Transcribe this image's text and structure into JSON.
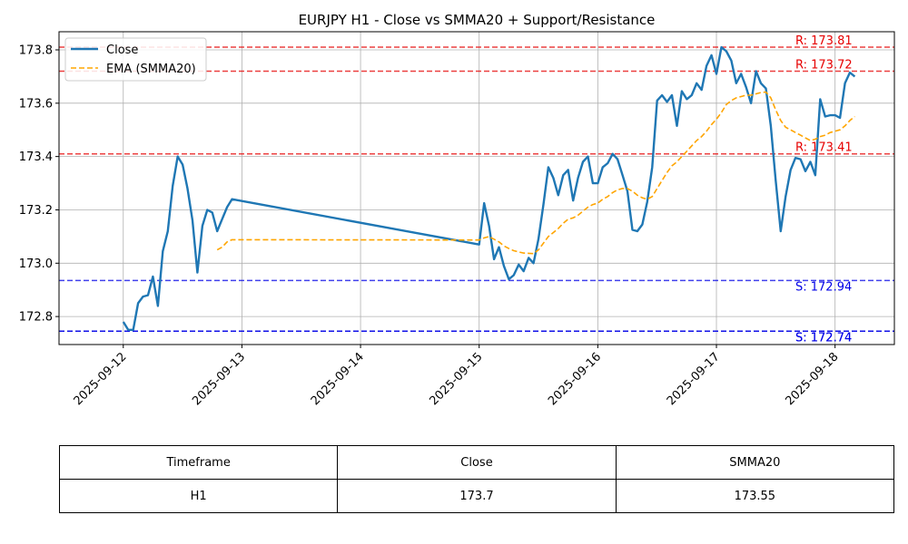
{
  "chart_data": {
    "type": "line",
    "title": "EURJPY H1 - Close vs SMMA20 + Support/Resistance",
    "xlabel": "",
    "ylabel": "",
    "x_ticks": [
      "2025-09-12",
      "2025-09-13",
      "2025-09-14",
      "2025-09-15",
      "2025-09-16",
      "2025-09-17",
      "2025-09-18"
    ],
    "y_ticks": [
      172.8,
      173.0,
      173.2,
      173.4,
      173.6,
      173.8
    ],
    "y_tick_labels": [
      "172.8",
      "173.0",
      "173.2",
      "173.4",
      "173.6",
      "173.8"
    ],
    "xlim": [
      "2025-09-11T11:00",
      "2025-09-18T12:00"
    ],
    "ylim": [
      172.695,
      173.868
    ],
    "grid": true,
    "legend_position": "top-left",
    "series": [
      {
        "name": "Close",
        "color": "#1f77b4",
        "style": "solid",
        "points": [
          [
            "2025-09-12T00:00",
            172.78
          ],
          [
            "2025-09-12T01:00",
            172.75
          ],
          [
            "2025-09-12T02:00",
            172.75
          ],
          [
            "2025-09-12T03:00",
            172.85
          ],
          [
            "2025-09-12T04:00",
            172.875
          ],
          [
            "2025-09-12T05:00",
            172.88
          ],
          [
            "2025-09-12T06:00",
            172.95
          ],
          [
            "2025-09-12T07:00",
            172.84
          ],
          [
            "2025-09-12T08:00",
            173.045
          ],
          [
            "2025-09-12T09:00",
            173.12
          ],
          [
            "2025-09-12T10:00",
            173.29
          ],
          [
            "2025-09-12T11:00",
            173.4
          ],
          [
            "2025-09-12T12:00",
            173.37
          ],
          [
            "2025-09-12T13:00",
            173.28
          ],
          [
            "2025-09-12T14:00",
            173.16
          ],
          [
            "2025-09-12T15:00",
            172.965
          ],
          [
            "2025-09-12T16:00",
            173.14
          ],
          [
            "2025-09-12T17:00",
            173.2
          ],
          [
            "2025-09-12T18:00",
            173.19
          ],
          [
            "2025-09-12T19:00",
            173.12
          ],
          [
            "2025-09-12T20:00",
            173.165
          ],
          [
            "2025-09-12T21:00",
            173.21
          ],
          [
            "2025-09-12T22:00",
            173.24
          ],
          [
            "2025-09-15T00:00",
            173.07
          ],
          [
            "2025-09-15T01:00",
            173.225
          ],
          [
            "2025-09-15T02:00",
            173.14
          ],
          [
            "2025-09-15T03:00",
            173.015
          ],
          [
            "2025-09-15T04:00",
            173.06
          ],
          [
            "2025-09-15T05:00",
            172.99
          ],
          [
            "2025-09-15T06:00",
            172.94
          ],
          [
            "2025-09-15T07:00",
            172.955
          ],
          [
            "2025-09-15T08:00",
            172.995
          ],
          [
            "2025-09-15T09:00",
            172.97
          ],
          [
            "2025-09-15T10:00",
            173.02
          ],
          [
            "2025-09-15T11:00",
            173.0
          ],
          [
            "2025-09-15T12:00",
            173.09
          ],
          [
            "2025-09-15T13:00",
            173.22
          ],
          [
            "2025-09-15T14:00",
            173.36
          ],
          [
            "2025-09-15T15:00",
            173.32
          ],
          [
            "2025-09-15T16:00",
            173.255
          ],
          [
            "2025-09-15T17:00",
            173.33
          ],
          [
            "2025-09-15T18:00",
            173.35
          ],
          [
            "2025-09-15T19:00",
            173.235
          ],
          [
            "2025-09-15T20:00",
            173.32
          ],
          [
            "2025-09-15T21:00",
            173.38
          ],
          [
            "2025-09-15T22:00",
            173.4
          ],
          [
            "2025-09-15T23:00",
            173.3
          ],
          [
            "2025-09-16T00:00",
            173.3
          ],
          [
            "2025-09-16T01:00",
            173.36
          ],
          [
            "2025-09-16T02:00",
            173.375
          ],
          [
            "2025-09-16T03:00",
            173.41
          ],
          [
            "2025-09-16T04:00",
            173.39
          ],
          [
            "2025-09-16T05:00",
            173.33
          ],
          [
            "2025-09-16T06:00",
            173.27
          ],
          [
            "2025-09-16T07:00",
            173.125
          ],
          [
            "2025-09-16T08:00",
            173.12
          ],
          [
            "2025-09-16T09:00",
            173.145
          ],
          [
            "2025-09-16T10:00",
            173.23
          ],
          [
            "2025-09-16T11:00",
            173.36
          ],
          [
            "2025-09-16T12:00",
            173.61
          ],
          [
            "2025-09-16T13:00",
            173.63
          ],
          [
            "2025-09-16T14:00",
            173.605
          ],
          [
            "2025-09-16T15:00",
            173.63
          ],
          [
            "2025-09-16T16:00",
            173.515
          ],
          [
            "2025-09-16T17:00",
            173.645
          ],
          [
            "2025-09-16T18:00",
            173.615
          ],
          [
            "2025-09-16T19:00",
            173.63
          ],
          [
            "2025-09-16T20:00",
            173.675
          ],
          [
            "2025-09-16T21:00",
            173.65
          ],
          [
            "2025-09-16T22:00",
            173.74
          ],
          [
            "2025-09-16T23:00",
            173.78
          ],
          [
            "2025-09-17T00:00",
            173.71
          ],
          [
            "2025-09-17T01:00",
            173.81
          ],
          [
            "2025-09-17T02:00",
            173.795
          ],
          [
            "2025-09-17T03:00",
            173.76
          ],
          [
            "2025-09-17T04:00",
            173.675
          ],
          [
            "2025-09-17T05:00",
            173.71
          ],
          [
            "2025-09-17T06:00",
            173.66
          ],
          [
            "2025-09-17T07:00",
            173.6
          ],
          [
            "2025-09-17T08:00",
            173.72
          ],
          [
            "2025-09-17T09:00",
            173.675
          ],
          [
            "2025-09-17T10:00",
            173.655
          ],
          [
            "2025-09-17T11:00",
            173.515
          ],
          [
            "2025-09-17T12:00",
            173.31
          ],
          [
            "2025-09-17T13:00",
            173.12
          ],
          [
            "2025-09-17T14:00",
            173.25
          ],
          [
            "2025-09-17T15:00",
            173.35
          ],
          [
            "2025-09-17T16:00",
            173.395
          ],
          [
            "2025-09-17T17:00",
            173.39
          ],
          [
            "2025-09-17T18:00",
            173.345
          ],
          [
            "2025-09-17T19:00",
            173.38
          ],
          [
            "2025-09-17T20:00",
            173.33
          ],
          [
            "2025-09-17T21:00",
            173.615
          ],
          [
            "2025-09-17T22:00",
            173.55
          ],
          [
            "2025-09-17T23:00",
            173.555
          ],
          [
            "2025-09-18T00:00",
            173.555
          ],
          [
            "2025-09-18T01:00",
            173.545
          ],
          [
            "2025-09-18T02:00",
            173.675
          ],
          [
            "2025-09-18T03:00",
            173.715
          ],
          [
            "2025-09-18T04:00",
            173.7
          ]
        ]
      },
      {
        "name": "EMA (SMMA20)",
        "color": "#ffa500",
        "style": "dashed",
        "points": [
          [
            "2025-09-12T19:00",
            173.05
          ],
          [
            "2025-09-12T20:00",
            173.06
          ],
          [
            "2025-09-12T21:00",
            173.08
          ],
          [
            "2025-09-12T22:00",
            173.088
          ],
          [
            "2025-09-15T00:00",
            173.087
          ],
          [
            "2025-09-15T01:00",
            173.095
          ],
          [
            "2025-09-15T02:00",
            173.1
          ],
          [
            "2025-09-15T03:00",
            173.09
          ],
          [
            "2025-09-15T04:00",
            173.08
          ],
          [
            "2025-09-15T05:00",
            173.065
          ],
          [
            "2025-09-15T06:00",
            173.055
          ],
          [
            "2025-09-15T07:00",
            173.047
          ],
          [
            "2025-09-15T08:00",
            173.042
          ],
          [
            "2025-09-15T09:00",
            173.038
          ],
          [
            "2025-09-15T10:00",
            173.037
          ],
          [
            "2025-09-15T11:00",
            173.036
          ],
          [
            "2025-09-15T12:00",
            173.05
          ],
          [
            "2025-09-15T13:00",
            173.075
          ],
          [
            "2025-09-15T14:00",
            173.1
          ],
          [
            "2025-09-15T15:00",
            173.115
          ],
          [
            "2025-09-15T16:00",
            173.13
          ],
          [
            "2025-09-15T17:00",
            173.15
          ],
          [
            "2025-09-15T18:00",
            173.165
          ],
          [
            "2025-09-15T19:00",
            173.17
          ],
          [
            "2025-09-15T20:00",
            173.18
          ],
          [
            "2025-09-15T21:00",
            173.195
          ],
          [
            "2025-09-15T22:00",
            173.21
          ],
          [
            "2025-09-15T23:00",
            173.22
          ],
          [
            "2025-09-16T00:00",
            173.225
          ],
          [
            "2025-09-16T01:00",
            173.24
          ],
          [
            "2025-09-16T02:00",
            173.25
          ],
          [
            "2025-09-16T03:00",
            173.265
          ],
          [
            "2025-09-16T04:00",
            173.275
          ],
          [
            "2025-09-16T05:00",
            173.28
          ],
          [
            "2025-09-16T06:00",
            173.28
          ],
          [
            "2025-09-16T07:00",
            173.27
          ],
          [
            "2025-09-16T08:00",
            173.255
          ],
          [
            "2025-09-16T09:00",
            173.245
          ],
          [
            "2025-09-16T10:00",
            173.24
          ],
          [
            "2025-09-16T11:00",
            173.25
          ],
          [
            "2025-09-16T12:00",
            173.28
          ],
          [
            "2025-09-16T13:00",
            173.31
          ],
          [
            "2025-09-16T14:00",
            173.34
          ],
          [
            "2025-09-16T15:00",
            173.365
          ],
          [
            "2025-09-16T16:00",
            173.38
          ],
          [
            "2025-09-16T17:00",
            173.4
          ],
          [
            "2025-09-16T18:00",
            173.42
          ],
          [
            "2025-09-16T19:00",
            173.44
          ],
          [
            "2025-09-16T20:00",
            173.46
          ],
          [
            "2025-09-16T21:00",
            173.475
          ],
          [
            "2025-09-16T22:00",
            173.495
          ],
          [
            "2025-09-16T23:00",
            173.52
          ],
          [
            "2025-09-17T00:00",
            173.54
          ],
          [
            "2025-09-17T01:00",
            173.565
          ],
          [
            "2025-09-17T02:00",
            173.595
          ],
          [
            "2025-09-17T03:00",
            173.61
          ],
          [
            "2025-09-17T04:00",
            173.62
          ],
          [
            "2025-09-17T05:00",
            173.625
          ],
          [
            "2025-09-17T06:00",
            173.63
          ],
          [
            "2025-09-17T07:00",
            173.63
          ],
          [
            "2025-09-17T08:00",
            173.635
          ],
          [
            "2025-09-17T09:00",
            173.64
          ],
          [
            "2025-09-17T10:00",
            173.642
          ],
          [
            "2025-09-17T11:00",
            173.62
          ],
          [
            "2025-09-17T12:00",
            173.575
          ],
          [
            "2025-09-17T13:00",
            173.535
          ],
          [
            "2025-09-17T14:00",
            173.51
          ],
          [
            "2025-09-17T15:00",
            173.5
          ],
          [
            "2025-09-17T16:00",
            173.49
          ],
          [
            "2025-09-17T17:00",
            173.48
          ],
          [
            "2025-09-17T18:00",
            173.47
          ],
          [
            "2025-09-17T19:00",
            173.46
          ],
          [
            "2025-09-17T20:00",
            173.465
          ],
          [
            "2025-09-17T21:00",
            173.475
          ],
          [
            "2025-09-17T22:00",
            173.48
          ],
          [
            "2025-09-17T23:00",
            173.49
          ],
          [
            "2025-09-18T00:00",
            173.495
          ],
          [
            "2025-09-18T01:00",
            173.5
          ],
          [
            "2025-09-18T02:00",
            173.515
          ],
          [
            "2025-09-18T03:00",
            173.535
          ],
          [
            "2025-09-18T04:00",
            173.55
          ]
        ]
      }
    ],
    "levels": [
      {
        "kind": "resistance",
        "value": 173.81,
        "label": "R: 173.81",
        "color": "#e60000"
      },
      {
        "kind": "resistance",
        "value": 173.72,
        "label": "R: 173.72",
        "color": "#e60000"
      },
      {
        "kind": "resistance",
        "value": 173.41,
        "label": "R: 173.41",
        "color": "#e60000"
      },
      {
        "kind": "support",
        "value": 172.935,
        "label": "S: 172.94",
        "color": "#0000e6"
      },
      {
        "kind": "support",
        "value": 172.745,
        "label": "S: 172.74",
        "color": "#0000e6"
      },
      {
        "kind": "support",
        "value": 172.745,
        "label": "S: 172.74",
        "color": "#0000e6"
      }
    ]
  },
  "table": {
    "headers": [
      "Timeframe",
      "Close",
      "SMMA20"
    ],
    "row": [
      "H1",
      "173.7",
      "173.55"
    ]
  }
}
